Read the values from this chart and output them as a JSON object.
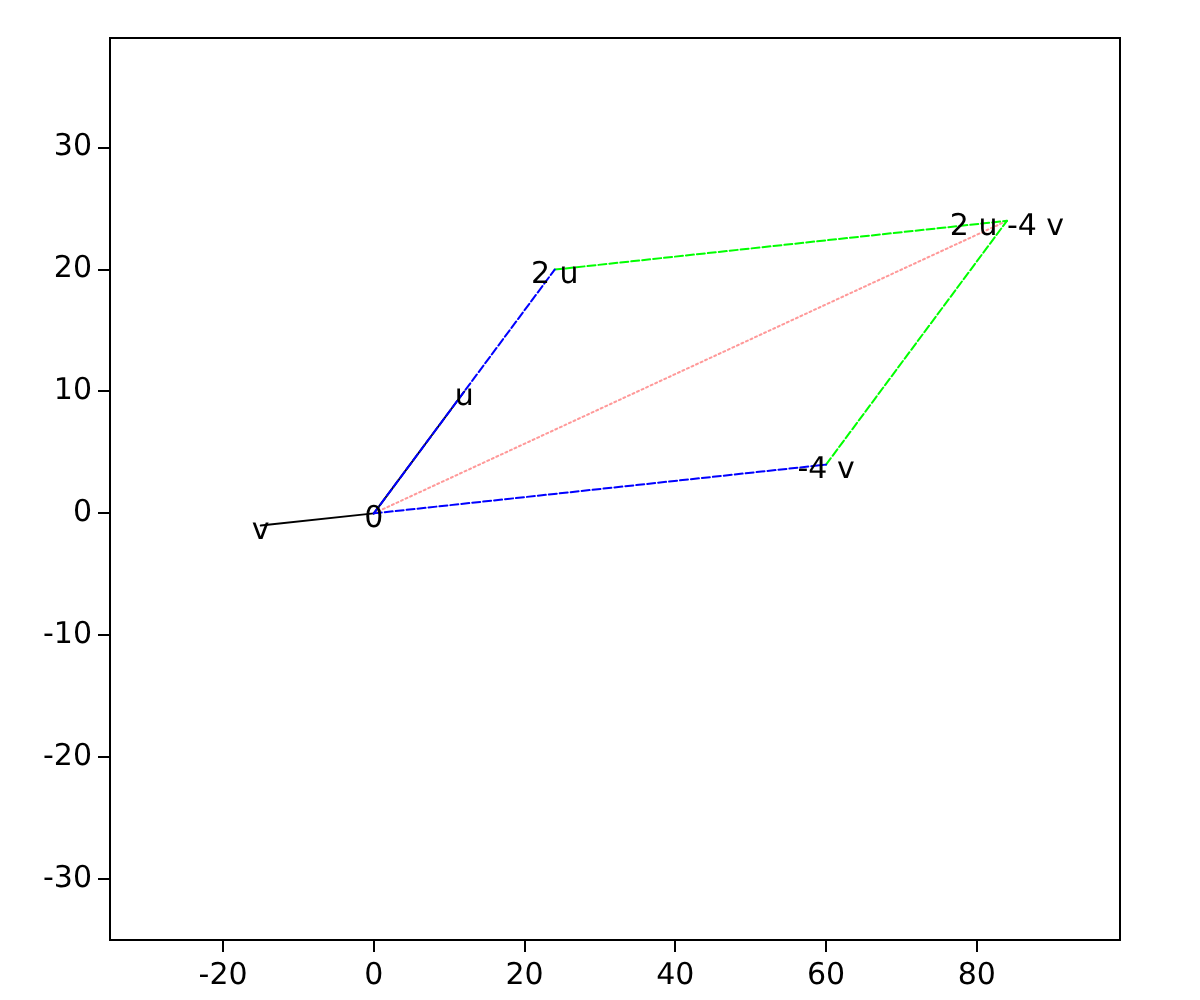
{
  "chart_data": {
    "type": "line",
    "xlim": [
      -35,
      99
    ],
    "xticks": [
      -20,
      0,
      20,
      40,
      60,
      80
    ],
    "ylim": [
      -35,
      39
    ],
    "yticks": [
      -30,
      -20,
      -10,
      0,
      10,
      20,
      30
    ],
    "grid": false,
    "legend": false,
    "marker": "none",
    "series": [
      {
        "color": "#0000ff",
        "line_style": "dashed",
        "x": [
          0,
          24
        ],
        "values": [
          0,
          20
        ]
      },
      {
        "color": "#0000ff",
        "line_style": "dashed",
        "x": [
          0,
          60
        ],
        "values": [
          0,
          4
        ]
      },
      {
        "color": "#000000",
        "line_style": "solid",
        "x": [
          0,
          -15
        ],
        "values": [
          0,
          -1
        ]
      },
      {
        "color": "#000000",
        "line_style": "solid",
        "x": [
          0,
          12
        ],
        "values": [
          0,
          10
        ]
      },
      {
        "color": "#00ff00",
        "line_style": "dashed",
        "x": [
          24,
          84
        ],
        "values": [
          20,
          24
        ]
      },
      {
        "color": "#00ff00",
        "line_style": "dashed",
        "x": [
          60,
          84
        ],
        "values": [
          4,
          24
        ]
      },
      {
        "color": "#ff9999",
        "line_style": "dotted",
        "x": [
          0,
          84
        ],
        "values": [
          0,
          24
        ]
      }
    ],
    "annotations": [
      {
        "text": "0",
        "x": 0,
        "y": 0
      },
      {
        "text": "u",
        "x": 12,
        "y": 10
      },
      {
        "text": "v",
        "x": -15,
        "y": -1
      },
      {
        "text": "2 u",
        "x": 24,
        "y": 20
      },
      {
        "text": "-4 v",
        "x": 60,
        "y": 4
      },
      {
        "text": "2 u -4 v",
        "x": 84,
        "y": 24
      }
    ]
  }
}
